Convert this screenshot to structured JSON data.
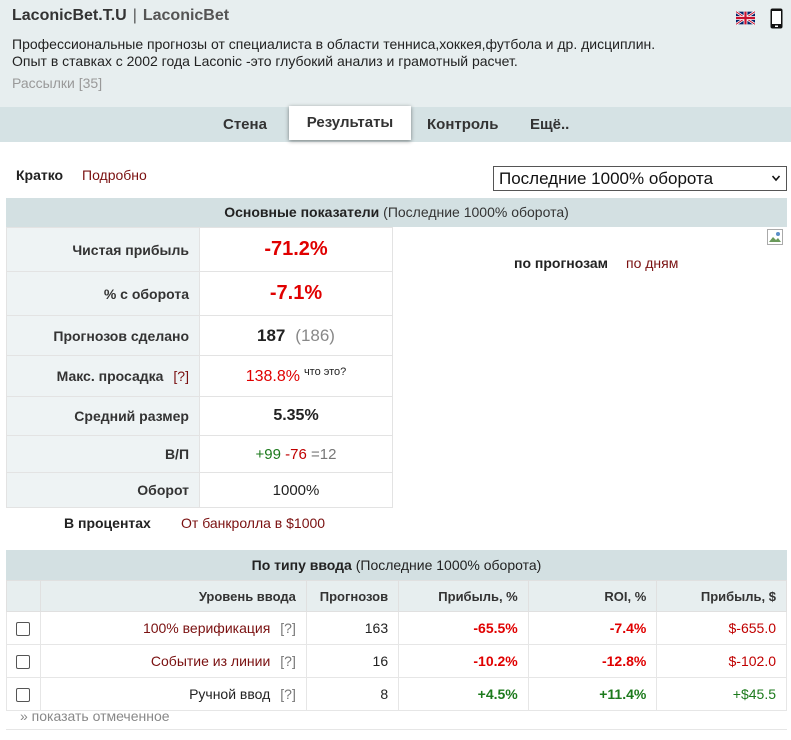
{
  "header": {
    "title": "LaconicBet.T.U",
    "separator": "|",
    "name": "LaconicBet",
    "desc_line1": "Профессиональные прогнозы от специалиста в области тенниса,хоккея,футбола и др. дисциплин.",
    "desc_line2": "Опыт в ставках с 2002 года Laconic -это глубокий анализ и грамотный расчет.",
    "subscriptions": "Рассылки [35]"
  },
  "nav": {
    "tabs": [
      {
        "label": "Стена"
      },
      {
        "label": "Результаты",
        "active": true
      },
      {
        "label": "Контроль"
      },
      {
        "label": "Ещё.."
      }
    ]
  },
  "view": {
    "brief": "Кратко",
    "detail": "Подробно",
    "period_selected": "Последние 1000% оборота"
  },
  "stats": {
    "title": "Основные показатели",
    "period": "(Последние 1000% оборота)",
    "rows": {
      "net_profit": {
        "label": "Чистая прибыль",
        "value": "-71.2%"
      },
      "turnover_pct": {
        "label": "% с оборота",
        "value": "-7.1%"
      },
      "forecasts": {
        "label": "Прогнозов сделано",
        "value": "187",
        "secondary": "(186)"
      },
      "drawdown": {
        "label": "Макс. просадка",
        "help": "[?]",
        "value": "138.8%",
        "note": "что это?"
      },
      "avg_size": {
        "label": "Средний размер",
        "value": "5.35%"
      },
      "wl": {
        "label": "В/П",
        "wins": "+99",
        "losses": "-76",
        "draws": "=12"
      },
      "turnover": {
        "label": "Оборот",
        "value": "1000%"
      }
    },
    "by_forecast": "по прогнозам",
    "by_day": "по дням",
    "pct_label": "В процентах",
    "bankroll_link": "От банкролла в $1000"
  },
  "input_type": {
    "title": "По типу ввода",
    "period": "(Последние 1000% оборота)",
    "columns": [
      "Уровень ввода",
      "Прогнозов",
      "Прибыль, %",
      "ROI, %",
      "Прибыль, $"
    ],
    "rows": [
      {
        "level": "100% верификация",
        "help": "[?]",
        "forecasts": "163",
        "profit_pct": "-65.5%",
        "roi": "-7.4%",
        "profit_usd": "$-655.0",
        "positive": false
      },
      {
        "level": "Событие из линии",
        "help": "[?]",
        "forecasts": "16",
        "profit_pct": "-10.2%",
        "roi": "-12.8%",
        "profit_usd": "$-102.0",
        "positive": false
      },
      {
        "level": "Ручной ввод",
        "help": "[?]",
        "forecasts": "8",
        "profit_pct": "+4.5%",
        "roi": "+11.4%",
        "profit_usd": "+$45.5",
        "positive": true
      }
    ],
    "show_selected": "» показать отмеченное"
  },
  "colors": {
    "header_bg": "#e7eeef",
    "nav_bg": "#d5e2e4",
    "panel_head_bg": "#d3e0e2",
    "negative": "#e00000",
    "positive": "#1c7a1c",
    "link": "#7a1010"
  }
}
